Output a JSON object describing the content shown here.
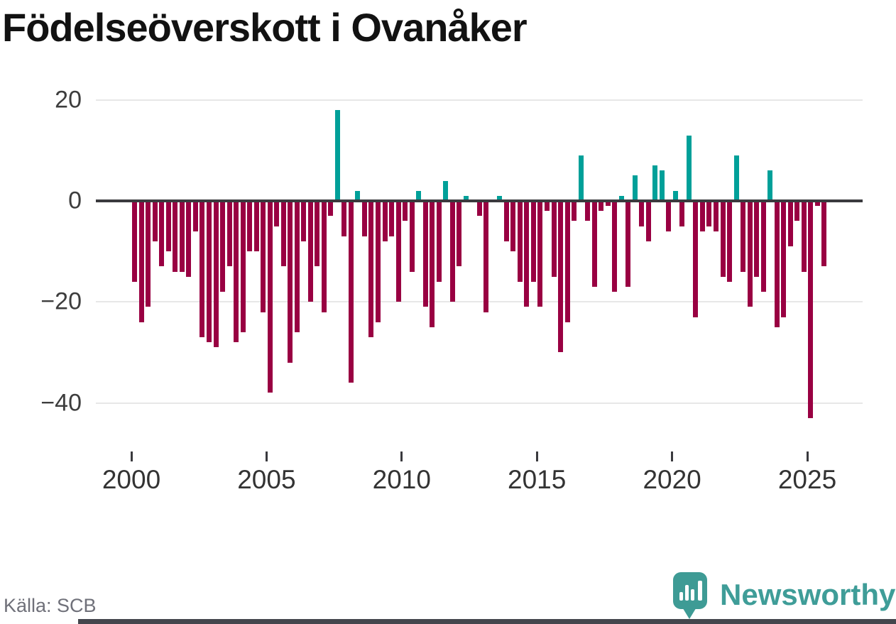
{
  "title": "Födelseöverskott i Ovanåker",
  "source": "Källa: SCB",
  "brand": {
    "name": "Newsworthy"
  },
  "colors": {
    "positive": "#00a099",
    "negative": "#990042",
    "zero_line": "#3a3a3e",
    "gridline": "#e7e7e7",
    "brand_teal": "#3e9b95",
    "bottom_strip": "#44464d",
    "title_text": "#121212",
    "axis_text": "#3d3d3d",
    "source_text": "#6f7079"
  },
  "chart_data": {
    "type": "bar",
    "title": "Födelseöverskott i Ovanåker",
    "xlabel": "",
    "ylabel": "",
    "ylim": [
      -45,
      22
    ],
    "y_ticks": [
      20,
      0,
      -20,
      -40
    ],
    "y_tick_labels": [
      "20",
      "0",
      "−20",
      "−40"
    ],
    "x_tick_labels": [
      "2000",
      "2005",
      "2010",
      "2015",
      "2020",
      "2025"
    ],
    "grid": "horizontal",
    "legend": "none",
    "frequency": "quarterly",
    "x": [
      "2000-Q1",
      "2000-Q2",
      "2000-Q3",
      "2000-Q4",
      "2001-Q1",
      "2001-Q2",
      "2001-Q3",
      "2001-Q4",
      "2002-Q1",
      "2002-Q2",
      "2002-Q3",
      "2002-Q4",
      "2003-Q1",
      "2003-Q2",
      "2003-Q3",
      "2003-Q4",
      "2004-Q1",
      "2004-Q2",
      "2004-Q3",
      "2004-Q4",
      "2005-Q1",
      "2005-Q2",
      "2005-Q3",
      "2005-Q4",
      "2006-Q1",
      "2006-Q2",
      "2006-Q3",
      "2006-Q4",
      "2007-Q1",
      "2007-Q2",
      "2007-Q3",
      "2007-Q4",
      "2008-Q1",
      "2008-Q2",
      "2008-Q3",
      "2008-Q4",
      "2009-Q1",
      "2009-Q2",
      "2009-Q3",
      "2009-Q4",
      "2010-Q1",
      "2010-Q2",
      "2010-Q3",
      "2010-Q4",
      "2011-Q1",
      "2011-Q2",
      "2011-Q3",
      "2011-Q4",
      "2012-Q1",
      "2012-Q2",
      "2012-Q3",
      "2012-Q4",
      "2013-Q1",
      "2013-Q2",
      "2013-Q3",
      "2013-Q4",
      "2014-Q1",
      "2014-Q2",
      "2014-Q3",
      "2014-Q4",
      "2015-Q1",
      "2015-Q2",
      "2015-Q3",
      "2015-Q4",
      "2016-Q1",
      "2016-Q2",
      "2016-Q3",
      "2016-Q4",
      "2017-Q1",
      "2017-Q2",
      "2017-Q3",
      "2017-Q4",
      "2018-Q1",
      "2018-Q2",
      "2018-Q3",
      "2018-Q4",
      "2019-Q1",
      "2019-Q2",
      "2019-Q3",
      "2019-Q4",
      "2020-Q1",
      "2020-Q2",
      "2020-Q3",
      "2020-Q4",
      "2021-Q1",
      "2021-Q2",
      "2021-Q3",
      "2021-Q4",
      "2022-Q1",
      "2022-Q2",
      "2022-Q3",
      "2022-Q4",
      "2023-Q1",
      "2023-Q2",
      "2023-Q3",
      "2023-Q4",
      "2024-Q1",
      "2024-Q2",
      "2024-Q3",
      "2024-Q4",
      "2025-Q1",
      "2025-Q2",
      "2025-Q3"
    ],
    "values": [
      -16,
      -24,
      -21,
      -8,
      -13,
      -10,
      -14,
      -14,
      -15,
      -6,
      -27,
      -28,
      -29,
      -18,
      -13,
      -28,
      -26,
      -10,
      -10,
      -22,
      -38,
      -5,
      -13,
      -32,
      -26,
      -8,
      -20,
      -13,
      -22,
      -3,
      18,
      -7,
      -36,
      2,
      -7,
      -27,
      -24,
      -8,
      -7,
      -20,
      -4,
      -14,
      2,
      -21,
      -25,
      -16,
      4,
      -20,
      -13,
      1,
      0,
      -3,
      -22,
      0,
      1,
      -8,
      -10,
      -16,
      -21,
      -16,
      -21,
      -2,
      -15,
      -30,
      -24,
      -4,
      9,
      -4,
      -17,
      -2,
      -1,
      -18,
      1,
      -17,
      5,
      -5,
      -8,
      7,
      6,
      -6,
      2,
      -5,
      13,
      -23,
      -6,
      -5,
      -6,
      -15,
      -16,
      9,
      -14,
      -21,
      -15,
      -18,
      6,
      -25,
      -23,
      -9,
      -4,
      -14,
      -43,
      -1,
      -13
    ]
  }
}
